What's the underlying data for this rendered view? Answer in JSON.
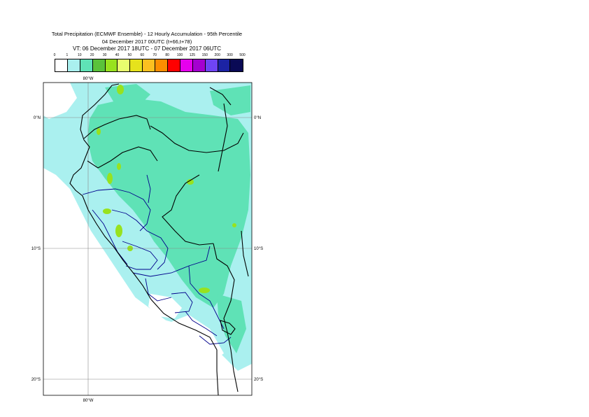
{
  "titles": {
    "line1": "Total Precipitation (ECMWF Ensemble) - 12 Hourly Accumulation - 95th Percentile",
    "line2": "04 December 2017 00UTC (t+66,t+78)",
    "line3": "VT: 06 December 2017 18UTC - 07 December 2017 06UTC"
  },
  "legend": {
    "ticks": [
      "0",
      "1",
      "10",
      "20",
      "30",
      "40",
      "50",
      "60",
      "70",
      "80",
      "100",
      "125",
      "150",
      "200",
      "300",
      "500"
    ],
    "colors": [
      "#ffffff",
      "#aaf0ef",
      "#5fe2b6",
      "#5ac23a",
      "#98e21e",
      "#e8fd6e",
      "#e6e21c",
      "#fcc020",
      "#fd8d00",
      "#ff0000",
      "#e600ee",
      "#a500d0",
      "#6f44f4",
      "#1c23a4",
      "#0a0a55"
    ]
  },
  "map": {
    "lat_labels": [
      "0°N",
      "10°S",
      "20°S"
    ],
    "lon_top": "80°W",
    "lon_bottom": "80°W",
    "colors": {
      "land": "#ffffff",
      "light": "#aaf0ef",
      "medium": "#5fe2b6",
      "heavy": "#98e21e",
      "border": "#000000",
      "admin": "#00008b"
    }
  }
}
